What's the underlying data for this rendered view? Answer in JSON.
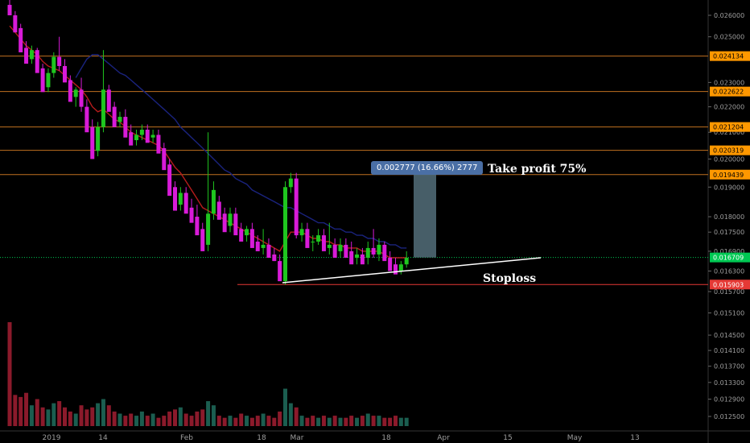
{
  "chart_data": {
    "type": "candlestick",
    "title": "",
    "xlabel": "",
    "ylabel": "",
    "ylim": [
      0.01225,
      0.02655
    ],
    "x_ticks": [
      "2019",
      "14",
      "Feb",
      "18",
      "Mar",
      "18",
      "Apr",
      "15",
      "May",
      "13"
    ],
    "y_ticks": [
      "0.026000",
      "0.025000",
      "0.023000",
      "0.022000",
      "0.021000",
      "0.020000",
      "0.019000",
      "0.018000",
      "0.017500",
      "0.016900",
      "0.016300",
      "0.015700",
      "0.015100",
      "0.014500",
      "0.014100",
      "0.013700",
      "0.013300",
      "0.012900",
      "0.012500"
    ],
    "colors": {
      "up": "#1fc61f",
      "down": "#d81bd8",
      "ema_fast": "#b71c1c",
      "ema_slow": "#1a237e",
      "level": "#c07020",
      "level_badge": "#ff9800",
      "current": "#00c853",
      "stop": "#e53935",
      "measure_box": "#546e7a",
      "volume_up": "#1b5e50",
      "volume_down": "#8b1a2b"
    },
    "levels": [
      "0.024134",
      "0.022622",
      "0.021204",
      "0.020319",
      "0.019439"
    ],
    "current_price": "0.016709",
    "stop_price": "0.015903",
    "candles": [
      [
        0.0265,
        0.0268,
        0.0262,
        0.026
      ],
      [
        0.026,
        0.0262,
        0.0254,
        0.0252
      ],
      [
        0.0254,
        0.0256,
        0.0245,
        0.0243
      ],
      [
        0.0245,
        0.0248,
        0.024,
        0.0238
      ],
      [
        0.024,
        0.0246,
        0.0238,
        0.0244
      ],
      [
        0.0244,
        0.0245,
        0.0236,
        0.0234
      ],
      [
        0.0236,
        0.0238,
        0.0228,
        0.0226
      ],
      [
        0.0228,
        0.0236,
        0.0226,
        0.0234
      ],
      [
        0.0234,
        0.0243,
        0.0232,
        0.0241
      ],
      [
        0.0241,
        0.025,
        0.0235,
        0.0237
      ],
      [
        0.0237,
        0.024,
        0.0231,
        0.023
      ],
      [
        0.0231,
        0.0233,
        0.0224,
        0.0222
      ],
      [
        0.0224,
        0.0228,
        0.022,
        0.0227
      ],
      [
        0.0227,
        0.0232,
        0.0218,
        0.022
      ],
      [
        0.022,
        0.0223,
        0.0212,
        0.021
      ],
      [
        0.0212,
        0.0215,
        0.0203,
        0.02
      ],
      [
        0.0203,
        0.0214,
        0.0201,
        0.0212
      ],
      [
        0.0212,
        0.0244,
        0.021,
        0.0227
      ],
      [
        0.0227,
        0.0229,
        0.022,
        0.0218
      ],
      [
        0.022,
        0.0222,
        0.0214,
        0.0212
      ],
      [
        0.0214,
        0.0218,
        0.0212,
        0.0216
      ],
      [
        0.0216,
        0.0219,
        0.021,
        0.0208
      ],
      [
        0.021,
        0.0213,
        0.0207,
        0.0205
      ],
      [
        0.0207,
        0.0211,
        0.0205,
        0.0209
      ],
      [
        0.0209,
        0.0213,
        0.0207,
        0.0211
      ],
      [
        0.0211,
        0.0213,
        0.0208,
        0.0206
      ],
      [
        0.0208,
        0.0211,
        0.0206,
        0.0209
      ],
      [
        0.0209,
        0.0211,
        0.0204,
        0.0202
      ],
      [
        0.0204,
        0.0206,
        0.0198,
        0.0196
      ],
      [
        0.0198,
        0.02,
        0.019,
        0.0187
      ],
      [
        0.019,
        0.0192,
        0.0184,
        0.0182
      ],
      [
        0.0184,
        0.019,
        0.0182,
        0.0188
      ],
      [
        0.0188,
        0.019,
        0.0183,
        0.0181
      ],
      [
        0.0183,
        0.0186,
        0.018,
        0.0178
      ],
      [
        0.018,
        0.0184,
        0.0176,
        0.0174
      ],
      [
        0.0176,
        0.0178,
        0.0171,
        0.0169
      ],
      [
        0.0171,
        0.021,
        0.0169,
        0.0181
      ],
      [
        0.0181,
        0.0192,
        0.0179,
        0.0189
      ],
      [
        0.0185,
        0.0187,
        0.0181,
        0.0179
      ],
      [
        0.0181,
        0.0183,
        0.0177,
        0.0175
      ],
      [
        0.0177,
        0.0183,
        0.0175,
        0.0181
      ],
      [
        0.0181,
        0.0183,
        0.0176,
        0.0174
      ],
      [
        0.0176,
        0.0178,
        0.0173,
        0.0172
      ],
      [
        0.0174,
        0.0177,
        0.0172,
        0.0176
      ],
      [
        0.0176,
        0.0178,
        0.0172,
        0.017
      ],
      [
        0.0172,
        0.0174,
        0.017,
        0.0169
      ],
      [
        0.017,
        0.0176,
        0.0168,
        0.0171
      ],
      [
        0.0171,
        0.0173,
        0.0168,
        0.0167
      ],
      [
        0.0168,
        0.017,
        0.0166,
        0.0166
      ],
      [
        0.0166,
        0.0168,
        0.0161,
        0.016
      ],
      [
        0.016,
        0.0192,
        0.0159,
        0.019
      ],
      [
        0.019,
        0.0195,
        0.0188,
        0.0193
      ],
      [
        0.0193,
        0.0195,
        0.0173,
        0.0174
      ],
      [
        0.0174,
        0.0178,
        0.0172,
        0.0176
      ],
      [
        0.0176,
        0.0178,
        0.0171,
        0.017
      ],
      [
        0.0172,
        0.0174,
        0.0169,
        0.0172
      ],
      [
        0.0172,
        0.0176,
        0.0171,
        0.0174
      ],
      [
        0.0174,
        0.0176,
        0.017,
        0.0169
      ],
      [
        0.017,
        0.0178,
        0.0168,
        0.0171
      ],
      [
        0.0171,
        0.0173,
        0.0168,
        0.0167
      ],
      [
        0.0169,
        0.0173,
        0.0167,
        0.0171
      ],
      [
        0.0171,
        0.0173,
        0.0168,
        0.0167
      ],
      [
        0.0169,
        0.0172,
        0.0166,
        0.0165
      ],
      [
        0.0167,
        0.017,
        0.0165,
        0.0168
      ],
      [
        0.0168,
        0.017,
        0.0166,
        0.0165
      ],
      [
        0.0167,
        0.0172,
        0.0165,
        0.017
      ],
      [
        0.017,
        0.0176,
        0.0167,
        0.0168
      ],
      [
        0.0168,
        0.0173,
        0.0166,
        0.0171
      ],
      [
        0.0171,
        0.0172,
        0.0167,
        0.0166
      ],
      [
        0.0167,
        0.0169,
        0.0164,
        0.0163
      ],
      [
        0.0165,
        0.0167,
        0.0163,
        0.0162
      ],
      [
        0.0163,
        0.0166,
        0.0162,
        0.0165
      ],
      [
        0.0165,
        0.0169,
        0.0164,
        0.0167
      ]
    ],
    "ema_fast": [
      0.0255,
      0.0252,
      0.0249,
      0.0246,
      0.0244,
      0.0242,
      0.0239,
      0.0237,
      0.0236,
      0.0235,
      0.0233,
      0.0231,
      0.0229,
      0.0227,
      0.0224,
      0.022,
      0.0218,
      0.0219,
      0.0217,
      0.0215,
      0.0214,
      0.0212,
      0.021,
      0.0209,
      0.0208,
      0.0207,
      0.0206,
      0.0205,
      0.0203,
      0.02,
      0.0197,
      0.0195,
      0.0192,
      0.0189,
      0.0186,
      0.0183,
      0.0182,
      0.0181,
      0.018,
      0.0179,
      0.0178,
      0.0177,
      0.0176,
      0.0175,
      0.0174,
      0.0173,
      0.0172,
      0.0171,
      0.017,
      0.0169,
      0.0172,
      0.0175,
      0.0175,
      0.0175,
      0.0174,
      0.0173,
      0.0173,
      0.0172,
      0.0172,
      0.0171,
      0.0171,
      0.017,
      0.017,
      0.017,
      0.0169,
      0.0169,
      0.0169,
      0.0169,
      0.0168,
      0.0167,
      0.0167,
      0.0167,
      0.0167
    ],
    "ema_slow": [
      null,
      null,
      null,
      null,
      null,
      null,
      null,
      null,
      null,
      null,
      null,
      null,
      0.0232,
      0.0236,
      0.024,
      0.0242,
      0.0242,
      0.024,
      0.0238,
      0.0236,
      0.0234,
      0.0233,
      0.0231,
      0.0229,
      0.0227,
      0.0225,
      0.0223,
      0.0221,
      0.0219,
      0.0217,
      0.0215,
      0.0212,
      0.021,
      0.0208,
      0.0206,
      0.0204,
      0.0202,
      0.02,
      0.0198,
      0.0196,
      0.0195,
      0.0193,
      0.0192,
      0.0191,
      0.0189,
      0.0188,
      0.0187,
      0.0186,
      0.0185,
      0.0184,
      0.0183,
      0.0183,
      0.0182,
      0.0181,
      0.018,
      0.0179,
      0.0178,
      0.0178,
      0.0177,
      0.0176,
      0.0176,
      0.0175,
      0.0175,
      0.0174,
      0.0174,
      0.0173,
      0.0173,
      0.0172,
      0.0172,
      0.0171,
      0.0171,
      0.017,
      0.017
    ],
    "volume": [
      100,
      30,
      28,
      32,
      20,
      26,
      18,
      16,
      22,
      24,
      18,
      14,
      12,
      20,
      16,
      18,
      22,
      26,
      20,
      14,
      12,
      10,
      12,
      10,
      14,
      10,
      12,
      8,
      10,
      14,
      16,
      18,
      12,
      10,
      14,
      16,
      24,
      20,
      10,
      8,
      10,
      8,
      12,
      10,
      8,
      10,
      12,
      10,
      8,
      14,
      36,
      22,
      18,
      10,
      8,
      10,
      8,
      10,
      8,
      10,
      8,
      8,
      10,
      8,
      10,
      12,
      10,
      10,
      8,
      8,
      10,
      8,
      8
    ],
    "measure_text": "0.002777 (16.66%) 2777",
    "annotations": [
      "Take profit 75%",
      "Stoploss"
    ]
  }
}
